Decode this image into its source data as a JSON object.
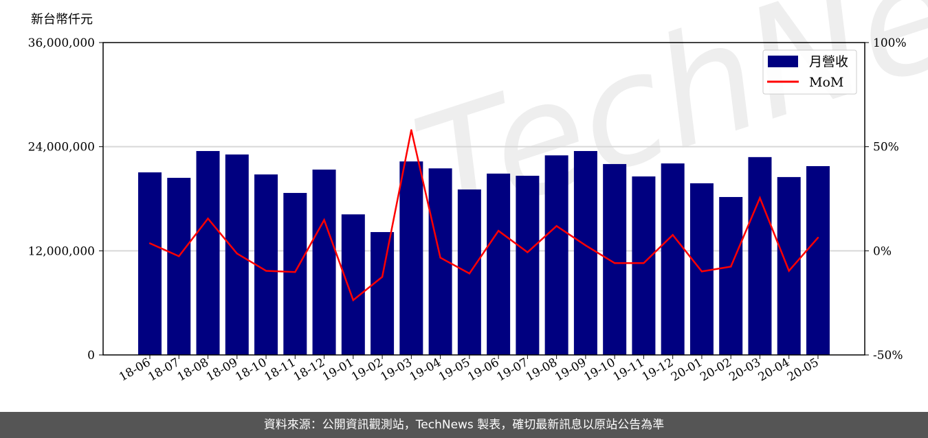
{
  "chart_data": {
    "type": "bar+line",
    "ylabel": "新台幣仟元",
    "categories": [
      "18-06",
      "18-07",
      "18-08",
      "18-09",
      "18-10",
      "18-11",
      "18-12",
      "19-01",
      "19-02",
      "19-03",
      "19-04",
      "19-05",
      "19-06",
      "19-07",
      "19-08",
      "19-09",
      "19-10",
      "19-11",
      "19-12",
      "20-01",
      "20-02",
      "20-03",
      "20-04",
      "20-05"
    ],
    "series": [
      {
        "name": "月營收",
        "type": "bar",
        "axis": "left",
        "color": "#000080",
        "values": [
          21040000,
          20410000,
          23500000,
          23100000,
          20800000,
          18670000,
          21360000,
          16200000,
          14160000,
          22300000,
          21500000,
          19070000,
          20900000,
          20650000,
          23000000,
          23500000,
          22000000,
          20570000,
          22070000,
          19780000,
          18200000,
          22800000,
          20500000,
          21760000
        ]
      },
      {
        "name": "MoM",
        "type": "line",
        "axis": "right",
        "color": "#ff0000",
        "unit": "%",
        "values": [
          3.6,
          -2.6,
          15.5,
          -1.3,
          -9.6,
          -10.2,
          14.8,
          -23.7,
          -12.5,
          58.0,
          -3.3,
          -10.9,
          9.6,
          -0.7,
          11.9,
          2.6,
          -5.9,
          -5.9,
          7.6,
          -9.9,
          -7.6,
          25.4,
          -9.6,
          6.3
        ]
      }
    ],
    "left_axis": {
      "ylim": [
        0,
        36000000
      ],
      "ticks": [
        0,
        12000000,
        24000000,
        36000000
      ],
      "tick_labels": [
        "0",
        "12,000,000",
        "24,000,000",
        "36,000,000"
      ]
    },
    "right_axis": {
      "ylim": [
        -50,
        100
      ],
      "ticks": [
        -50,
        0,
        50,
        100
      ],
      "tick_labels": [
        "-50%",
        "0%",
        "50%",
        "100%"
      ]
    },
    "grid": "horizontal",
    "legend": "top-right",
    "watermark": "TechNews"
  },
  "footer": {
    "source": "資料來源：公開資訊觀測站，TechNews 製表，確切最新訊息以原站公告為準"
  }
}
